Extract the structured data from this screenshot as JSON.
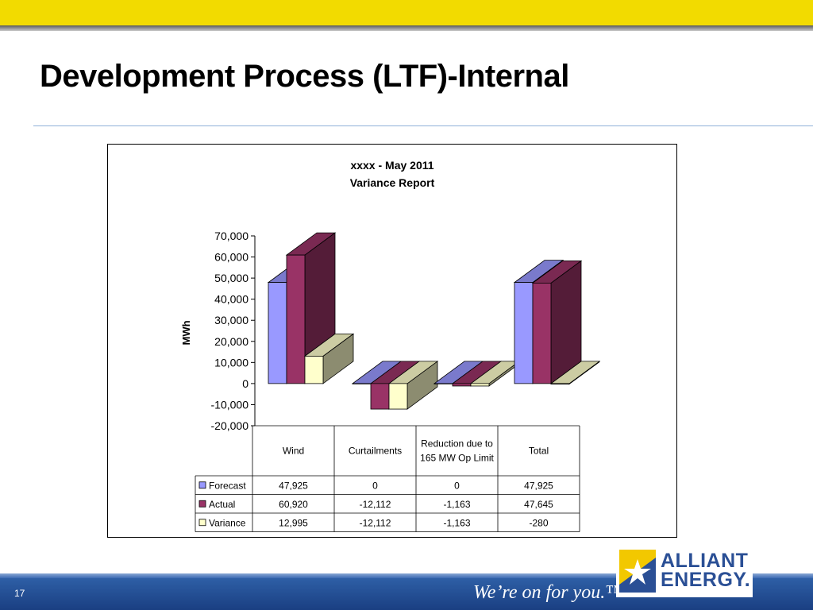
{
  "slide": {
    "title": "Development Process (LTF)-Internal",
    "page_number": "17",
    "tagline": "We’re on for you.™"
  },
  "logo": {
    "line1": "ALLIANT",
    "line2": "ENERGY."
  },
  "colors": {
    "top_bar": "#f2db00",
    "forecast": "#9999ff",
    "actual": "#993366",
    "variance": "#ffffcc",
    "footer_blue": "#1f4a90"
  },
  "chart_data": {
    "type": "bar",
    "title": "xxxx -  May 2011",
    "subtitle": "Variance Report",
    "ylabel": "MWh",
    "ylim": [
      -20000,
      70000
    ],
    "yticks": [
      70000,
      60000,
      50000,
      40000,
      30000,
      20000,
      10000,
      0,
      -10000,
      -20000
    ],
    "ytick_labels": [
      "70,000",
      "60,000",
      "50,000",
      "40,000",
      "30,000",
      "20,000",
      "10,000",
      "0",
      "-10,000",
      "-20,000"
    ],
    "categories": [
      "Wind",
      "Curtailments",
      "Reduction due to 165 MW Op Limit",
      "Total"
    ],
    "series": [
      {
        "name": "Forecast",
        "color": "#9999ff",
        "values": [
          47925,
          0,
          0,
          47925
        ],
        "labels": [
          "47,925",
          "0",
          "0",
          "47,925"
        ]
      },
      {
        "name": "Actual",
        "color": "#993366",
        "values": [
          60920,
          -12112,
          -1163,
          47645
        ],
        "labels": [
          "60,920",
          "-12,112",
          "-1,163",
          "47,645"
        ]
      },
      {
        "name": "Variance",
        "color": "#ffffcc",
        "values": [
          12995,
          -12112,
          -1163,
          -280
        ],
        "labels": [
          "12,995",
          "-12,112",
          "-1,163",
          "-280"
        ]
      }
    ],
    "grid": false,
    "legend": "data-table",
    "three_d": true
  }
}
